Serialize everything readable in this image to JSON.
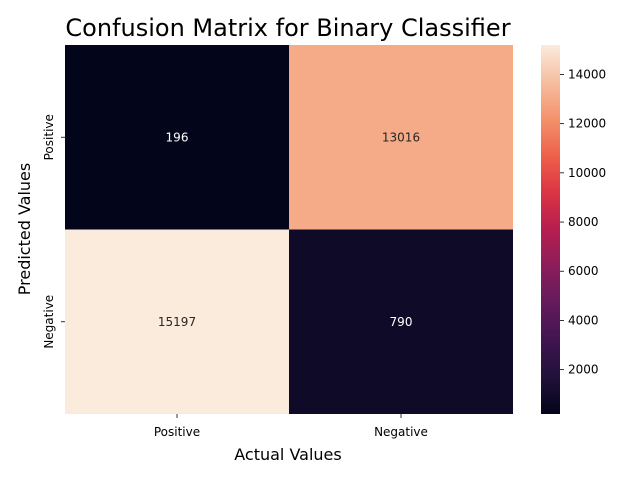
{
  "chart_data": {
    "type": "heatmap",
    "title": "Confusion Matrix for Binary Classifier",
    "xlabel": "Actual Values",
    "ylabel": "Predicted Values",
    "x_categories": [
      "Positive",
      "Negative"
    ],
    "y_categories": [
      "Positive",
      "Negative"
    ],
    "values": [
      [
        196,
        13016
      ],
      [
        15197,
        790
      ]
    ],
    "colormap": "rocket",
    "colorbar": {
      "vmin": 196,
      "vmax": 15197,
      "ticks": [
        2000,
        4000,
        6000,
        8000,
        10000,
        12000,
        14000
      ]
    }
  }
}
